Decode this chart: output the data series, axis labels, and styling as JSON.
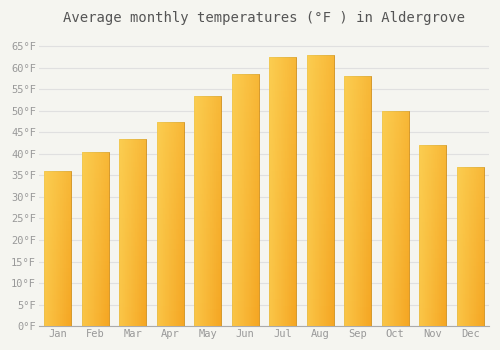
{
  "title": "Average monthly temperatures (°F ) in Aldergrove",
  "months": [
    "Jan",
    "Feb",
    "Mar",
    "Apr",
    "May",
    "Jun",
    "Jul",
    "Aug",
    "Sep",
    "Oct",
    "Nov",
    "Dec"
  ],
  "values": [
    36,
    40.5,
    43.5,
    47.5,
    53.5,
    58.5,
    62.5,
    63,
    58,
    50,
    42,
    37
  ],
  "bar_color_bottom": "#F5A623",
  "bar_color_top": "#FFD966",
  "bar_edge_color": "#C8860A",
  "ylim": [
    0,
    68
  ],
  "yticks": [
    0,
    5,
    10,
    15,
    20,
    25,
    30,
    35,
    40,
    45,
    50,
    55,
    60,
    65
  ],
  "ytick_labels": [
    "0°F",
    "5°F",
    "10°F",
    "15°F",
    "20°F",
    "25°F",
    "30°F",
    "35°F",
    "40°F",
    "45°F",
    "50°F",
    "55°F",
    "60°F",
    "65°F"
  ],
  "background_color": "#F5F5F0",
  "plot_bg_color": "#F5F5F0",
  "grid_color": "#E0E0E0",
  "title_fontsize": 10,
  "tick_fontsize": 7.5,
  "font_family": "monospace",
  "title_color": "#555555",
  "tick_color": "#999999"
}
